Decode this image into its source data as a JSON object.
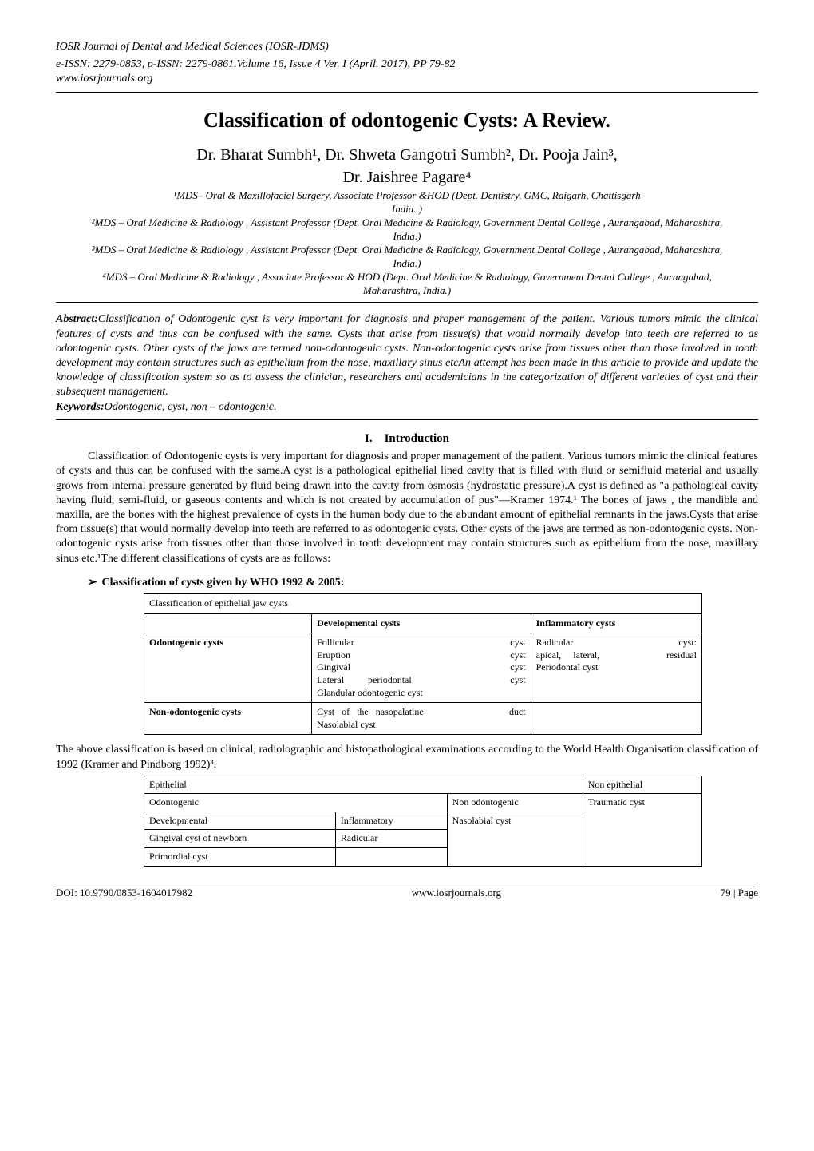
{
  "journal": {
    "name": "IOSR Journal of Dental and Medical Sciences (IOSR-JDMS)",
    "issn_line": "e-ISSN: 2279-0853, p-ISSN: 2279-0861.Volume 16, Issue 4 Ver. I (April. 2017), PP 79-82",
    "site": "www.iosrjournals.org"
  },
  "title": "Classification of odontogenic Cysts: A Review.",
  "authors_line": "Dr. Bharat Sumbh¹, Dr. Shweta Gangotri Sumbh², Dr. Pooja Jain³,",
  "authors_line2": "Dr. Jaishree Pagare⁴",
  "affiliations": {
    "a1": "¹MDS– Oral & Maxillofacial Surgery, Associate Professor &HOD (Dept. Dentistry, GMC, Raigarh, Chattisgarh",
    "a1b": "India. )",
    "a2": "²MDS – Oral Medicine & Radiology , Assistant Professor (Dept. Oral Medicine & Radiology, Government Dental College , Aurangabad, Maharashtra, India.)",
    "a3": "³MDS – Oral Medicine & Radiology , Assistant Professor (Dept. Oral Medicine & Radiology, Government Dental College , Aurangabad, Maharashtra, India.)",
    "a4": "⁴MDS – Oral Medicine & Radiology , Associate Professor & HOD (Dept. Oral Medicine & Radiology, Government Dental College , Aurangabad, Maharashtra, India.)"
  },
  "abstract": {
    "label": "Abstract:",
    "text": "Classification of Odontogenic cyst is very important for diagnosis and proper management of the patient. Various tumors mimic the clinical features of cysts and thus can be confused with the same. Cysts that arise from tissue(s) that would normally develop into teeth are referred to as odontogenic cysts. Other cysts of the jaws are termed non-odontogenic cysts. Non-odontogenic cysts arise from tissues other than those involved in tooth development may contain structures such as epithelium from the nose, maxillary sinus etcAn attempt has been made in this article to provide and update the knowledge of classification system so as to assess the clinician, researchers and academicians in the categorization of different varieties of cyst and their subsequent management."
  },
  "keywords": {
    "label": "Keywords:",
    "text": "Odontogenic, cyst, non – odontogenic."
  },
  "section1": {
    "number": "I.",
    "title": "Introduction",
    "body": "Classification of Odontogenic cysts is very important for diagnosis and proper management of the patient. Various tumors mimic the clinical features of cysts and thus can be confused with the same.A cyst is a pathological epithelial lined cavity that is filled with fluid or semifluid material and usually grows from internal pressure generated by fluid being drawn into the cavity from osmosis (hydrostatic pressure).A cyst is defined as \"a pathological cavity having fluid, semi-fluid, or gaseous contents and which is not created by accumulation of pus\"—Kramer 1974.¹ The bones of jaws , the mandible and maxilla, are the bones with the highest prevalence of cysts in the human body due to the abundant amount of epithelial remnants in the jaws.Cysts that arise from tissue(s) that would normally develop into teeth are referred to as odontogenic cysts. Other cysts of the jaws are termed as non-odontogenic cysts. Non-odontogenic cysts arise from tissues other than those involved in tooth development may contain structures such as epithelium from the nose, maxillary sinus etc.¹The different classifications of cysts are as follows:"
  },
  "subhead1": "Classification of cysts given by WHO 1992 & 2005:",
  "table1": {
    "caption": "Classification of epithelial jaw cysts",
    "header_dev": "Developmental cysts",
    "header_inf": "Inflammatory cysts",
    "row1_label": "Odontogenic cysts",
    "row1_dev_left": "Follicular\nEruption\nGingival\nLateral          periodontal\nGlandular odontogenic cyst",
    "row1_dev_right": "cyst\ncyst\ncyst\ncyst",
    "row1_inf_left": "Radicular\napical,      lateral,\nPeriodontal cyst",
    "row1_inf_right": "cyst:\nresidual",
    "row2_label": "Non-odontogenic cysts",
    "row2_dev_left": "Cyst    of    the    nasopalatine\nNasolabial cyst",
    "row2_dev_right": "duct"
  },
  "midtext": "The above classification is based on clinical, radiolographic and histopathological examinations according to the World Health Organisation classification of 1992 (Kramer and Pindborg 1992)³.",
  "table2": {
    "r1c1": "Epithelial",
    "r1c2": "Non epithelial",
    "r2c1": "Odontogenic",
    "r2c2": "Non odontogenic",
    "r3c1": "Developmental",
    "r3c2": "Inflammatory",
    "r3c4": "Traumatic cyst",
    "r4c1": "Gingival cyst of newborn",
    "r4c2": "Radicular",
    "r4c3": "Nasolabial cyst",
    "r5c1": "Primordial cyst"
  },
  "footer": {
    "doi": "DOI: 10.9790/0853-1604017982",
    "site": "www.iosrjournals.org",
    "page": "79 | Page"
  },
  "colors": {
    "text": "#000000",
    "background": "#ffffff",
    "border": "#000000"
  }
}
